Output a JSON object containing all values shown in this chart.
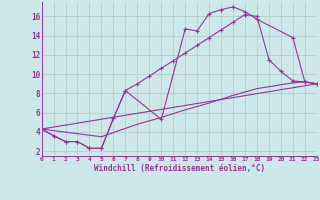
{
  "xlabel": "Windchill (Refroidissement éolien,°C)",
  "bg_color": "#cce8e8",
  "line_color": "#993399",
  "grid_color": "#aacccc",
  "xlim": [
    0,
    23
  ],
  "ylim": [
    1.5,
    17.5
  ],
  "xticks": [
    0,
    1,
    2,
    3,
    4,
    5,
    6,
    7,
    8,
    9,
    10,
    11,
    12,
    13,
    14,
    15,
    16,
    17,
    18,
    19,
    20,
    21,
    22,
    23
  ],
  "yticks": [
    2,
    4,
    6,
    8,
    10,
    12,
    14,
    16
  ],
  "curve1_x": [
    0,
    1,
    2,
    3,
    4,
    5,
    6,
    7,
    10,
    12,
    13,
    14,
    15,
    16,
    17,
    18,
    21,
    22,
    23
  ],
  "curve1_y": [
    4.3,
    3.6,
    3.0,
    3.0,
    2.3,
    2.3,
    5.4,
    8.3,
    5.3,
    14.7,
    14.5,
    16.3,
    16.7,
    17.0,
    16.5,
    15.7,
    13.8,
    9.2,
    9.0
  ],
  "curve2_x": [
    0,
    1,
    2,
    3,
    4,
    5,
    6,
    7,
    8,
    9,
    10,
    11,
    12,
    13,
    14,
    15,
    16,
    17,
    18,
    19,
    20,
    21,
    22,
    23
  ],
  "curve2_y": [
    4.3,
    3.6,
    3.0,
    3.0,
    2.3,
    2.3,
    5.4,
    8.3,
    9.0,
    9.8,
    10.6,
    11.4,
    12.2,
    13.0,
    13.8,
    14.6,
    15.4,
    16.2,
    16.0,
    11.5,
    10.3,
    9.3,
    9.2,
    9.0
  ],
  "curve3_x": [
    0,
    23
  ],
  "curve3_y": [
    4.3,
    9.0
  ],
  "curve4_x": [
    0,
    5,
    8,
    10,
    12,
    14,
    16,
    18,
    19,
    20,
    21,
    22,
    23
  ],
  "curve4_y": [
    4.3,
    3.5,
    4.8,
    5.5,
    6.3,
    7.0,
    7.8,
    8.5,
    8.7,
    8.9,
    9.1,
    9.2,
    9.0
  ]
}
